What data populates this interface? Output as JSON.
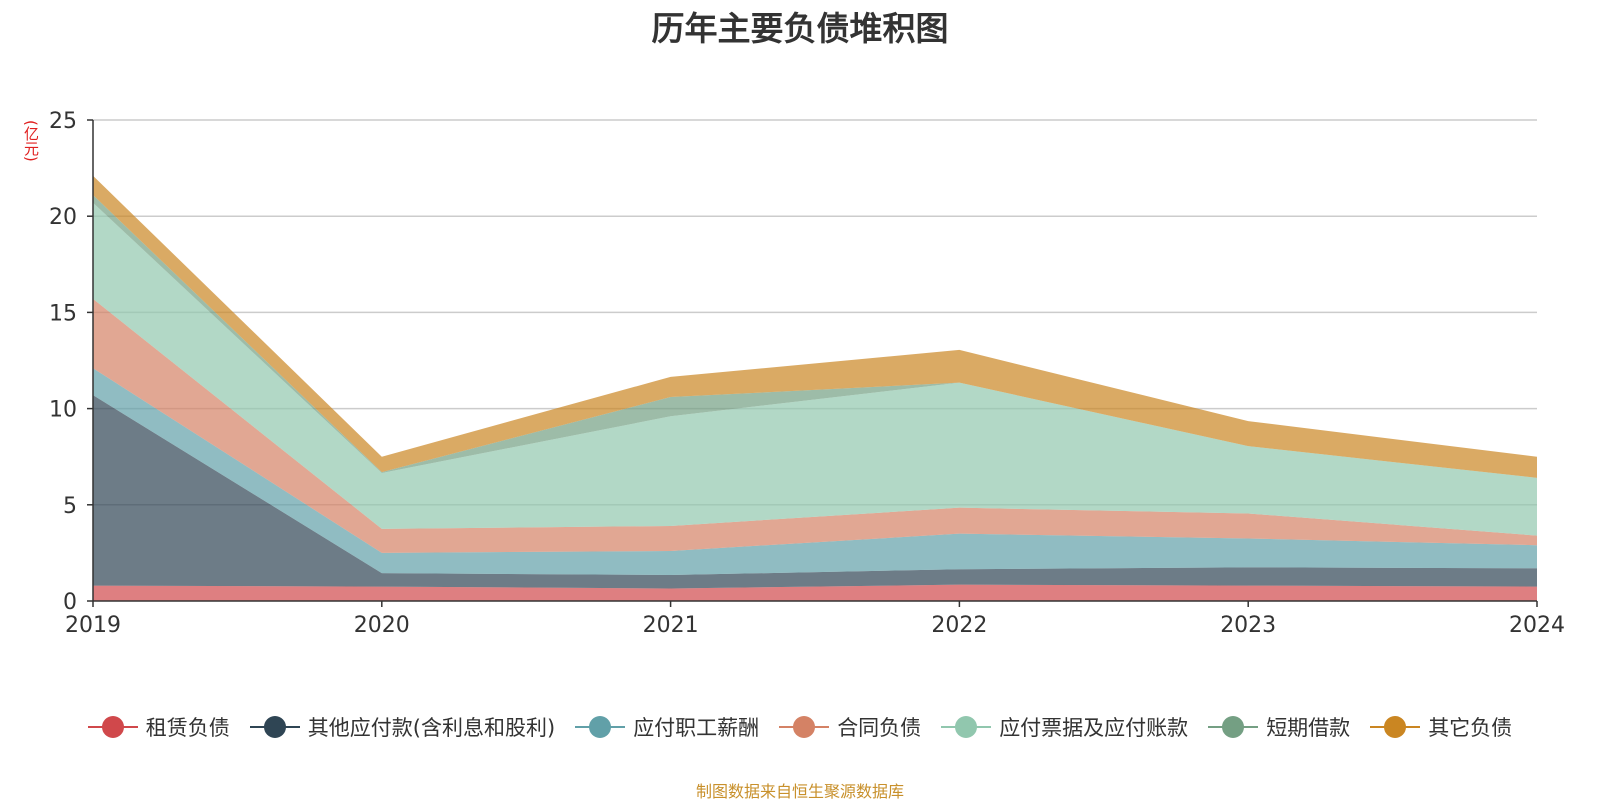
{
  "chart_data": {
    "type": "area",
    "stacked": true,
    "title": "历年主要负债堆积图",
    "ylabel": "(亿元)",
    "xlabel": "",
    "x": [
      "2019",
      "2020",
      "2021",
      "2022",
      "2023",
      "2024"
    ],
    "ylim": [
      0,
      25
    ],
    "yticks": [
      0,
      5,
      10,
      15,
      20,
      25
    ],
    "grid": true,
    "legend_position": "bottom",
    "series": [
      {
        "name": "租赁负债",
        "color": "#d0484b",
        "values": [
          0.8,
          0.75,
          0.65,
          0.85,
          0.8,
          0.75
        ]
      },
      {
        "name": "其他应付款(含利息和股利)",
        "color": "#2f4554",
        "values": [
          9.9,
          0.7,
          0.7,
          0.8,
          0.95,
          0.95
        ]
      },
      {
        "name": "应付职工薪酬",
        "color": "#61a0a8",
        "values": [
          1.4,
          1.05,
          1.25,
          1.85,
          1.5,
          1.2
        ]
      },
      {
        "name": "合同负债",
        "color": "#d48265",
        "values": [
          3.6,
          1.25,
          1.3,
          1.35,
          1.3,
          0.5
        ]
      },
      {
        "name": "应付票据及应付账款",
        "color": "#91c7ae",
        "values": [
          5.0,
          2.9,
          5.7,
          6.5,
          3.5,
          3.0
        ]
      },
      {
        "name": "短期借款",
        "color": "#749f83",
        "values": [
          0.4,
          0.05,
          1.0,
          0.0,
          0.0,
          0.0
        ]
      },
      {
        "name": "其它负债",
        "color": "#ca8622",
        "values": [
          1.0,
          0.8,
          1.05,
          1.7,
          1.3,
          1.1
        ]
      }
    ],
    "source": "制图数据来自恒生聚源数据库"
  }
}
